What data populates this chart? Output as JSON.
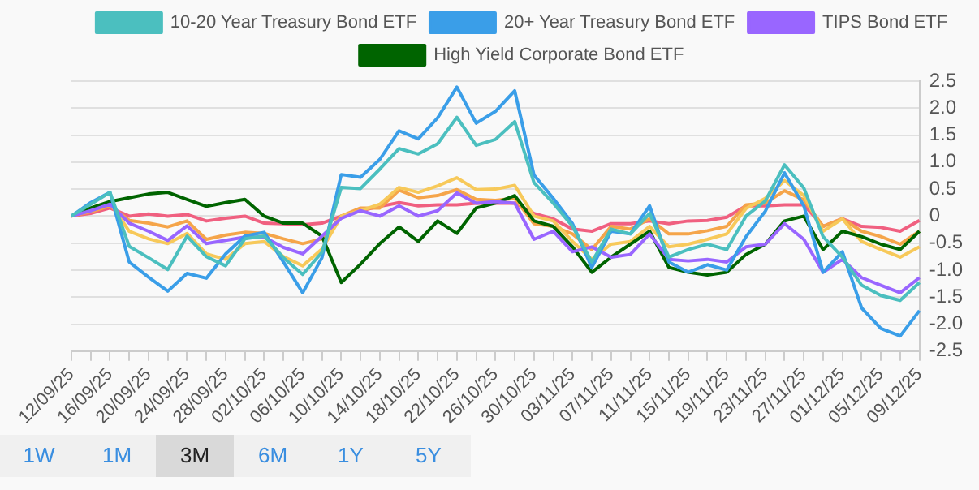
{
  "chart_data": {
    "type": "line",
    "categories": [
      "12/09/25",
      null,
      "16/09/25",
      null,
      "20/09/25",
      null,
      "24/09/25",
      null,
      "28/09/25",
      null,
      "02/10/25",
      null,
      "06/10/25",
      null,
      "10/10/25",
      null,
      "14/10/25",
      null,
      "18/10/25",
      null,
      "22/10/25",
      null,
      "26/10/25",
      null,
      "30/10/25",
      null,
      "03/11/25",
      null,
      "07/11/25",
      null,
      "11/11/25",
      null,
      "15/11/25",
      null,
      "19/11/25",
      null,
      "23/11/25",
      null,
      "27/11/25",
      null,
      "01/12/25",
      null,
      "05/12/25",
      null,
      "09/12/25"
    ],
    "series": [
      {
        "name": "10-20 Year Treasury Bond ETF",
        "color": "#4bbfbf",
        "values": [
          0,
          0.22,
          0.44,
          -0.56,
          -0.77,
          -0.99,
          -0.37,
          -0.75,
          -0.92,
          -0.42,
          -0.37,
          -0.77,
          -1.08,
          -0.67,
          0.53,
          0.51,
          0.87,
          1.25,
          1.15,
          1.34,
          1.83,
          1.31,
          1.42,
          1.75,
          0.62,
          0.24,
          -0.19,
          -0.85,
          -0.24,
          -0.33,
          0.05,
          -0.76,
          -0.62,
          -0.52,
          -0.62,
          0,
          0.28,
          0.95,
          0.52,
          -0.38,
          -0.76,
          -1.28,
          -1.47,
          -1.56,
          -1.23
        ]
      },
      {
        "name": "20+ Year Treasury Bond ETF",
        "color": "#3a9ee8",
        "values": [
          0,
          0.25,
          0.44,
          -0.85,
          -1.13,
          -1.39,
          -1.06,
          -1.15,
          -0.7,
          -0.37,
          -0.3,
          -0.85,
          -1.42,
          -0.77,
          0.77,
          0.72,
          1.05,
          1.58,
          1.43,
          1.82,
          2.39,
          1.72,
          1.94,
          2.32,
          0.76,
          0.33,
          -0.14,
          -0.95,
          -0.28,
          -0.33,
          0.19,
          -0.85,
          -1.04,
          -0.9,
          -1,
          -0.38,
          0.09,
          0.8,
          0.19,
          -1.04,
          -0.66,
          -1.7,
          -2.08,
          -2.22,
          -1.75
        ]
      },
      {
        "name": "TIPS Bond ETF",
        "color": "#9966ff",
        "values": [
          0,
          0.1,
          0.22,
          -0.13,
          -0.28,
          -0.45,
          -0.18,
          -0.51,
          -0.45,
          -0.39,
          -0.39,
          -0.58,
          -0.7,
          -0.37,
          -0.04,
          0.1,
          0,
          0.19,
          0,
          0.1,
          0.43,
          0.24,
          0.27,
          0.24,
          -0.43,
          -0.28,
          -0.66,
          -0.57,
          -0.76,
          -0.71,
          -0.33,
          -0.8,
          -0.83,
          -0.8,
          -0.85,
          -0.57,
          -0.52,
          -0.14,
          -0.43,
          -1.04,
          -0.8,
          -1.14,
          -1.28,
          -1.42,
          -1.14
        ]
      },
      {
        "name": "High Yield Corporate Bond ETF",
        "color": "#006400",
        "values": [
          0,
          0.15,
          0.27,
          0.34,
          0.41,
          0.44,
          0.31,
          0.18,
          0.25,
          0.31,
          0,
          -0.13,
          -0.13,
          -0.37,
          -1.23,
          -0.89,
          -0.51,
          -0.2,
          -0.47,
          -0.09,
          -0.32,
          0.15,
          0.24,
          0.38,
          -0.09,
          -0.19,
          -0.57,
          -1.04,
          -0.76,
          -0.52,
          -0.28,
          -0.95,
          -1.04,
          -1.09,
          -1.04,
          -0.71,
          -0.52,
          -0.09,
          0,
          -0.62,
          -0.28,
          -0.38,
          -0.52,
          -0.62,
          -0.28
        ]
      },
      {
        "color": "#f7c95a",
        "values": [
          0,
          0.15,
          0.25,
          -0.28,
          -0.42,
          -0.51,
          -0.32,
          -0.7,
          -0.8,
          -0.51,
          -0.47,
          -0.75,
          -0.92,
          -0.61,
          0,
          0.1,
          0.22,
          0.53,
          0.44,
          0.56,
          0.71,
          0.49,
          0.5,
          0.57,
          0,
          -0.09,
          -0.47,
          -0.8,
          -0.52,
          -0.47,
          -0.19,
          -0.57,
          -0.52,
          -0.43,
          -0.33,
          0.14,
          0.33,
          0.66,
          0.38,
          -0.28,
          -0.05,
          -0.47,
          -0.62,
          -0.76,
          -0.57
        ]
      },
      {
        "color": "#f5a54a",
        "values": [
          0,
          0.08,
          0.19,
          -0.08,
          -0.13,
          -0.2,
          -0.09,
          -0.43,
          -0.35,
          -0.3,
          -0.32,
          -0.42,
          -0.51,
          -0.42,
          0,
          0.15,
          0.15,
          0.48,
          0.34,
          0.38,
          0.49,
          0.31,
          0.29,
          0.33,
          -0.14,
          -0.19,
          -0.33,
          -0.62,
          -0.19,
          -0.24,
          -0.05,
          -0.33,
          -0.33,
          -0.27,
          -0.19,
          0.21,
          0.24,
          0.47,
          0.3,
          -0.19,
          -0.05,
          -0.28,
          -0.38,
          -0.52,
          -0.28
        ]
      },
      {
        "color": "#f06080",
        "values": [
          0,
          0.05,
          0.15,
          0,
          0.04,
          0,
          0.03,
          -0.09,
          -0.04,
          0,
          -0.13,
          -0.14,
          -0.16,
          -0.13,
          0,
          0.1,
          0.18,
          0.25,
          0.19,
          0.21,
          0.21,
          0.24,
          0.24,
          0.24,
          0.05,
          -0.05,
          -0.24,
          -0.28,
          -0.14,
          -0.14,
          -0.09,
          -0.14,
          -0.09,
          -0.08,
          -0.02,
          0.19,
          0.19,
          0.21,
          0.21,
          -0.19,
          -0.05,
          -0.19,
          -0.21,
          -0.28,
          -0.08
        ]
      }
    ],
    "ylim": [
      -2.5,
      2.5
    ],
    "yticks": [
      -2.5,
      {
        "value": -2,
        "label": "-2.0"
      },
      -1.5,
      {
        "value": -1,
        "label": "-1.0"
      },
      -0.5,
      0,
      0.5,
      {
        "value": 1,
        "label": "1.0"
      },
      1.5,
      {
        "value": 2,
        "label": "2.0"
      },
      2.5
    ],
    "grid": "y",
    "legend": "top",
    "marker": "none",
    "line_style": "solid",
    "annotations": [
      "1W",
      "1M",
      "3M",
      "6M",
      "1Y",
      "5Y"
    ]
  }
}
